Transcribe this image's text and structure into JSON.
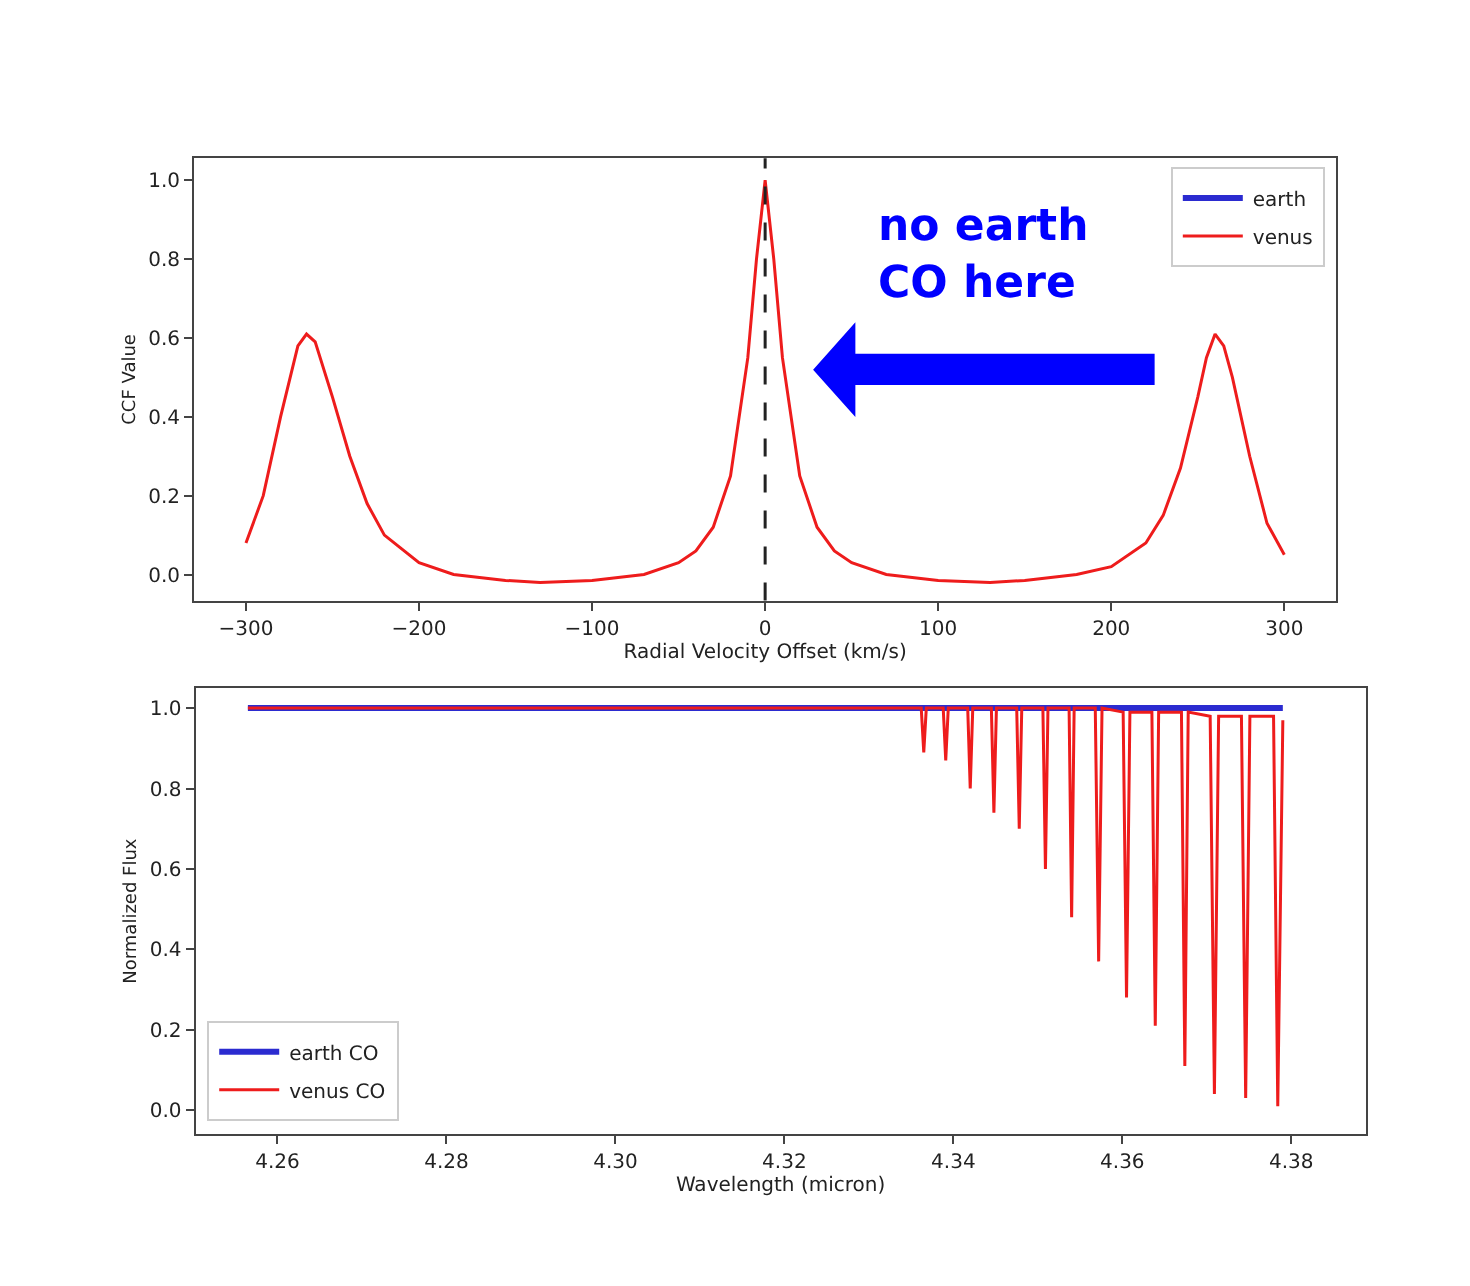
{
  "chart_data": [
    {
      "type": "line",
      "xlabel": "Radial Velocity Offset (km/s)",
      "ylabel": "CCF Value",
      "legend": "top right",
      "xlim": [
        -330,
        330
      ],
      "ylim": [
        -0.066,
        1.056
      ],
      "xticks": [
        {
          "value": -300,
          "label": "−300"
        },
        {
          "value": -200,
          "label": "−200"
        },
        {
          "value": -100,
          "label": "−100"
        },
        0,
        100,
        200,
        300
      ],
      "yticks": [
        {
          "value": 0,
          "label": "0.0"
        },
        {
          "value": 0.2,
          "label": "0.2"
        },
        {
          "value": 0.4,
          "label": "0.4"
        },
        {
          "value": 0.6,
          "label": "0.6"
        },
        {
          "value": 0.8,
          "label": "0.8"
        },
        {
          "value": 1,
          "label": "1.0"
        }
      ],
      "ref_lines": [
        {
          "axis": "x",
          "value": 0,
          "color": "#222222",
          "line_style": "dashed"
        }
      ],
      "annotations": [
        "no earth\nCO here"
      ],
      "series": [
        {
          "name": "earth",
          "color": "#2b2bd0"
        },
        {
          "name": "venus",
          "color": "#ee1c1c",
          "x": [
            -300,
            -290,
            -280,
            -270,
            -265,
            -260,
            -250,
            -240,
            -230,
            -220,
            -200,
            -180,
            -150,
            -130,
            -100,
            -70,
            -50,
            -40,
            -30,
            -20,
            -10,
            -5,
            0,
            5,
            10,
            20,
            30,
            40,
            50,
            70,
            100,
            130,
            150,
            180,
            200,
            220,
            230,
            240,
            250,
            255,
            260,
            265,
            270,
            280,
            290,
            300
          ],
          "values": [
            0.08,
            0.2,
            0.4,
            0.58,
            0.61,
            0.59,
            0.45,
            0.3,
            0.18,
            0.1,
            0.03,
            0.0,
            -0.015,
            -0.02,
            -0.015,
            0.0,
            0.03,
            0.06,
            0.12,
            0.25,
            0.55,
            0.8,
            1.0,
            0.8,
            0.55,
            0.25,
            0.12,
            0.06,
            0.03,
            0.0,
            -0.015,
            -0.02,
            -0.015,
            0.0,
            0.02,
            0.08,
            0.15,
            0.27,
            0.45,
            0.55,
            0.61,
            0.58,
            0.5,
            0.3,
            0.13,
            0.05
          ]
        }
      ]
    },
    {
      "type": "line",
      "xlabel": "Wavelength (micron)",
      "ylabel": "Normalized Flux",
      "legend": "bottom left",
      "xlim": [
        4.2503,
        4.3888
      ],
      "ylim": [
        -0.06,
        1.05
      ],
      "xticks": [
        4.26,
        4.28,
        {
          "value": 4.3,
          "label": "4.30"
        },
        4.32,
        4.34,
        4.36,
        4.38
      ],
      "yticks": [
        {
          "value": 0,
          "label": "0.0"
        },
        {
          "value": 0.2,
          "label": "0.2"
        },
        {
          "value": 0.4,
          "label": "0.4"
        },
        {
          "value": 0.6,
          "label": "0.6"
        },
        {
          "value": 0.8,
          "label": "0.8"
        },
        {
          "value": 1,
          "label": "1.0"
        }
      ],
      "series": [
        {
          "name": "earth CO",
          "color": "#2b2bd0",
          "x": [
            4.2565,
            4.379
          ],
          "values": [
            1.0,
            1.0
          ]
        },
        {
          "name": "venus CO",
          "color": "#ee1c1c",
          "x": [
            4.2565,
            4.3362,
            4.3365,
            4.3368,
            4.3388,
            4.3391,
            4.3394,
            4.3417,
            4.342,
            4.3423,
            4.3445,
            4.3448,
            4.3451,
            4.3475,
            4.3478,
            4.3481,
            4.3506,
            4.3509,
            4.3512,
            4.3537,
            4.354,
            4.3543,
            4.3568,
            4.3572,
            4.3576,
            4.3601,
            4.3605,
            4.3609,
            4.3635,
            4.3639,
            4.3643,
            4.367,
            4.3674,
            4.3678,
            4.3704,
            4.3709,
            4.3714,
            4.3741,
            4.3746,
            4.3751,
            4.3779,
            4.3784,
            4.379
          ],
          "values": [
            1.0,
            1.0,
            0.89,
            1.0,
            1.0,
            0.87,
            1.0,
            1.0,
            0.8,
            1.0,
            1.0,
            0.74,
            1.0,
            1.0,
            0.7,
            1.0,
            1.0,
            0.6,
            1.0,
            1.0,
            0.48,
            1.0,
            1.0,
            0.37,
            1.0,
            0.99,
            0.28,
            0.99,
            0.99,
            0.21,
            0.99,
            0.99,
            0.11,
            0.99,
            0.98,
            0.04,
            0.98,
            0.98,
            0.03,
            0.98,
            0.98,
            0.01,
            0.97
          ]
        }
      ]
    }
  ]
}
